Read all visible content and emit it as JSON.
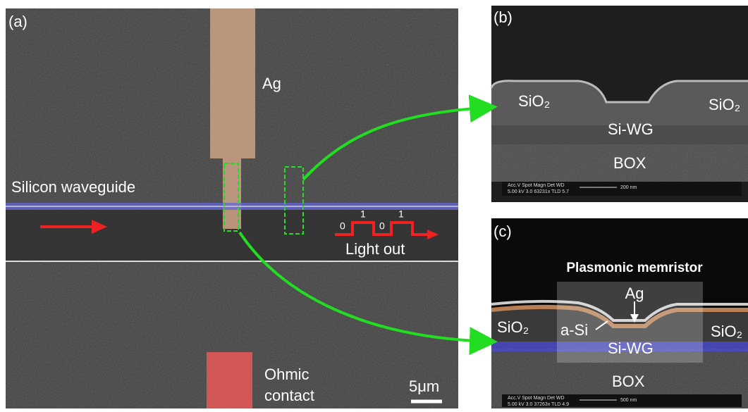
{
  "panel_a": {
    "label": "(a)",
    "ag": "Ag",
    "waveguide": "Silicon waveguide",
    "bits": [
      "0",
      "1",
      "0",
      "1"
    ],
    "light_out": "Light out",
    "ohmic": [
      "Ohmic",
      "contact"
    ],
    "scale": "5μm"
  },
  "panel_b": {
    "label": "(b)",
    "sio2_left": "SiO₂",
    "sio2_right": "SiO₂",
    "si_wg": "Si-WG",
    "box": "BOX",
    "info_header": "Acc.V  Spot  Magn   Det  WD",
    "info_values": "5.00 kV  3.0  63231x  TLD  5.7",
    "scale": "200 nm"
  },
  "panel_c": {
    "label": "(c)",
    "title": "Plasmonic memristor",
    "ag": "Ag",
    "a_si": "a-Si",
    "sio2_left": "SiO₂",
    "sio2_right": "SiO₂",
    "si_wg": "Si-WG",
    "box": "BOX",
    "info_header": "Acc.V  Spot  Magn   Det  WD",
    "info_values": "5.00 kV  3.0  37263x  TLD  4.9",
    "scale": "500 nm"
  }
}
